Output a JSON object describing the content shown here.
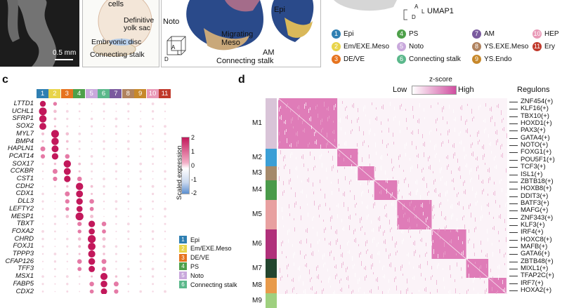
{
  "panel_a": {
    "scale_bar": "0.5 mm",
    "schematic_labels": [
      "cells",
      "Definitive yolk sac",
      "Embryonic disc",
      "Connecting stalk"
    ],
    "model_labels": [
      "Epi",
      "Noto",
      "Migrating Meso",
      "AM",
      "Connecting stalk"
    ],
    "axis_labels": [
      "A",
      "L",
      "D"
    ],
    "umap_label": "UMAP1"
  },
  "top_legend": [
    {
      "num": "1",
      "name": "Epi",
      "color": "#2f7fb2"
    },
    {
      "num": "2",
      "name": "Em/EXE.Meso",
      "color": "#e8d44a"
    },
    {
      "num": "3",
      "name": "DE/VE",
      "color": "#e6731e"
    },
    {
      "num": "4",
      "name": "PS",
      "color": "#4ea04a"
    },
    {
      "num": "5",
      "name": "Noto",
      "color": "#c9a8dc"
    },
    {
      "num": "6",
      "name": "Connecting stalk",
      "color": "#5bb88b"
    },
    {
      "num": "7",
      "name": "AM",
      "color": "#7a5a9e"
    },
    {
      "num": "8",
      "name": "YS.EXE.Meso",
      "color": "#b0825e"
    },
    {
      "num": "9",
      "name": "YS.Endo",
      "color": "#c7882a"
    },
    {
      "num": "10",
      "name": "HEP",
      "color": "#e999b7"
    },
    {
      "num": "11",
      "name": "Ery",
      "color": "#c0392b"
    }
  ],
  "panel_c": {
    "letter": "c",
    "columns": [
      "1",
      "2",
      "3",
      "4",
      "5",
      "6",
      "7",
      "8",
      "9",
      "10",
      "11"
    ],
    "column_colors": [
      "#2f7fb2",
      "#e8d44a",
      "#e6731e",
      "#4ea04a",
      "#c9a8dc",
      "#5bb88b",
      "#7a5a9e",
      "#b0825e",
      "#c7882a",
      "#e999b7",
      "#c0392b"
    ],
    "genes": [
      "LTTD1",
      "UCHL1",
      "SFRP1",
      "SOX2",
      "MYL7",
      "BMP4",
      "HAPLN1",
      "PCAT14",
      "SOX17",
      "CCKBR",
      "CST1",
      "CDH2",
      "CDX1",
      "DLL3",
      "LEFTY2",
      "MESP1",
      "TBXT",
      "FOXA2",
      "CHRD",
      "FOXJ1",
      "TPPP3",
      "CFAP126",
      "TFF3",
      "MSX1",
      "FABP5",
      "CDX2"
    ],
    "colorbar_title": "Scaled expression",
    "colorbar_ticks": [
      "2",
      "1",
      "0",
      "-1",
      "-2"
    ],
    "legend": [
      {
        "num": "1",
        "name": "Epi",
        "color": "#2f7fb2"
      },
      {
        "num": "2",
        "name": "Em/EXE.Meso",
        "color": "#e8d44a"
      },
      {
        "num": "3",
        "name": "DE/VE",
        "color": "#e6731e"
      },
      {
        "num": "4",
        "name": "PS",
        "color": "#4ea04a"
      },
      {
        "num": "5",
        "name": "Noto",
        "color": "#c9a8dc"
      },
      {
        "num": "6",
        "name": "Connecting stalk",
        "color": "#5bb88b"
      }
    ]
  },
  "panel_d": {
    "letter": "d",
    "zscore_title": "z-score",
    "zscore_low": "Low",
    "zscore_high": "High",
    "regulons_title": "Regulons",
    "modules": [
      {
        "name": "M1",
        "color": "#d9c4d8"
      },
      {
        "name": "M2",
        "color": "#3b9fd6"
      },
      {
        "name": "M3",
        "color": "#a58a6b"
      },
      {
        "name": "M4",
        "color": "#4a9a4a"
      },
      {
        "name": "M5",
        "color": "#e8a0a0"
      },
      {
        "name": "M6",
        "color": "#b0307a"
      },
      {
        "name": "M7",
        "color": "#23452e"
      },
      {
        "name": "M8",
        "color": "#e89a4a"
      },
      {
        "name": "M9",
        "color": "#9fd07f"
      }
    ],
    "regulons": [
      "ZNF454(+)",
      "KLF16(+)",
      "TBX10(+)",
      "HOXD1(+)",
      "PAX3(+)",
      "GATA4(+)",
      "NOTO(+)",
      "FOXG1(+)",
      "POU5F1(+)",
      "TCF3(+)",
      "ISL1(+)",
      "ZBTB18(+)",
      "HOXB8(+)",
      "DDIT3(+)",
      "BATF3(+)",
      "MAFG(+)",
      "ZNF343(+)",
      "KLF3(+)",
      "IRF4(+)",
      "HOXC8(+)",
      "MAFB(+)",
      "GATA6(+)",
      "ZBTB48(+)",
      "MIXL1(+)",
      "TFAP2C(+)",
      "IRF7(+)",
      "HOXA2(+)"
    ]
  }
}
